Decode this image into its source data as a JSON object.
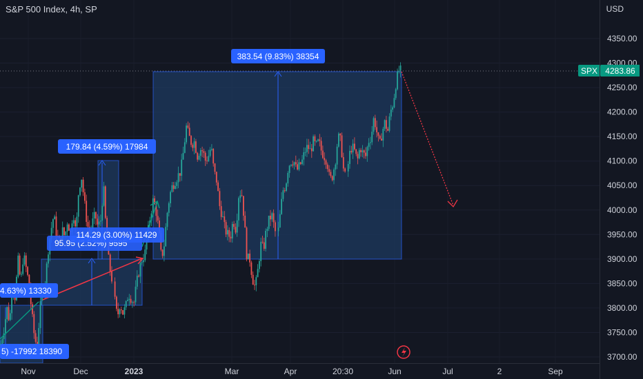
{
  "header": {
    "title": "S&P 500 Index, 4h, SP",
    "currency": "USD"
  },
  "price_tag": {
    "symbol": "SPX",
    "value": "4283.86",
    "price": 4283.86
  },
  "colors": {
    "bg": "#131722",
    "up": "#26a69a",
    "down": "#ef5350",
    "text": "#d1d4dc",
    "measure": "#2962ff",
    "measureFill": "#1e3a5f",
    "arrow": "#f23645",
    "tag": "#089981"
  },
  "chart_data": {
    "type": "candlestick",
    "title": "S&P 500 Index, 4h, SP",
    "ylim": [
      3690,
      4380
    ],
    "yticks": [
      4350,
      4300,
      4250,
      4200,
      4150,
      4100,
      4050,
      4000,
      3950,
      3900,
      3850,
      3800,
      3750,
      3700
    ],
    "ytick_labels": [
      "4350.00",
      "4300.00",
      "4250.00",
      "4200.00",
      "4150.00",
      "4100.00",
      "4050.00",
      "4000.00",
      "3950.00",
      "3900.00",
      "3850.00",
      "3800.00",
      "3750.00",
      "3700.00"
    ],
    "xticks": [
      {
        "label": "Nov",
        "bold": false
      },
      {
        "label": "Dec",
        "bold": false
      },
      {
        "label": "2023",
        "bold": true
      },
      {
        "label": "Mar",
        "bold": false
      },
      {
        "label": "Apr",
        "bold": false
      },
      {
        "label": "20:30",
        "bold": false
      },
      {
        "label": "Jun",
        "bold": false
      },
      {
        "label": "Jul",
        "bold": false
      },
      {
        "label": "2",
        "bold": false
      },
      {
        "label": "Sep",
        "bold": false
      }
    ],
    "last_price": 4283.86,
    "price_path": [
      [
        0,
        3720
      ],
      [
        6,
        3760
      ],
      [
        10,
        3800
      ],
      [
        14,
        3770
      ],
      [
        18,
        3860
      ],
      [
        22,
        3820
      ],
      [
        26,
        3900
      ],
      [
        30,
        3850
      ],
      [
        34,
        3910
      ],
      [
        38,
        3880
      ],
      [
        42,
        3850
      ],
      [
        46,
        3790
      ],
      [
        50,
        3740
      ],
      [
        54,
        3720
      ],
      [
        58,
        3800
      ],
      [
        62,
        3830
      ],
      [
        66,
        3860
      ],
      [
        70,
        3920
      ],
      [
        74,
        3960
      ],
      [
        78,
        3990
      ],
      [
        82,
        3950
      ],
      [
        86,
        3935
      ],
      [
        90,
        3960
      ],
      [
        94,
        3945
      ],
      [
        98,
        3980
      ],
      [
        102,
        3950
      ],
      [
        106,
        4000
      ],
      [
        110,
        3950
      ],
      [
        114,
        4040
      ],
      [
        118,
        4070
      ],
      [
        122,
        4020
      ],
      [
        126,
        3975
      ],
      [
        130,
        3950
      ],
      [
        134,
        3975
      ],
      [
        138,
        3990
      ],
      [
        142,
        3965
      ],
      [
        146,
        3980
      ],
      [
        150,
        4050
      ],
      [
        154,
        3950
      ],
      [
        158,
        3890
      ],
      [
        162,
        3860
      ],
      [
        166,
        3820
      ],
      [
        170,
        3780
      ],
      [
        174,
        3810
      ],
      [
        178,
        3790
      ],
      [
        182,
        3800
      ],
      [
        186,
        3830
      ],
      [
        190,
        3820
      ],
      [
        194,
        3810
      ],
      [
        198,
        3850
      ],
      [
        202,
        3880
      ],
      [
        206,
        3900
      ],
      [
        210,
        3910
      ],
      [
        214,
        3950
      ],
      [
        218,
        3990
      ],
      [
        222,
        4020
      ],
      [
        226,
        4000
      ],
      [
        230,
        3960
      ],
      [
        234,
        3900
      ],
      [
        238,
        3930
      ],
      [
        242,
        3990
      ],
      [
        246,
        4030
      ],
      [
        250,
        4050
      ],
      [
        254,
        4060
      ],
      [
        258,
        4070
      ],
      [
        262,
        4080
      ],
      [
        266,
        4120
      ],
      [
        270,
        4170
      ],
      [
        274,
        4150
      ],
      [
        278,
        4135
      ],
      [
        282,
        4140
      ],
      [
        286,
        4110
      ],
      [
        290,
        4125
      ],
      [
        294,
        4120
      ],
      [
        298,
        4100
      ],
      [
        302,
        4110
      ],
      [
        306,
        4130
      ],
      [
        310,
        4080
      ],
      [
        314,
        4060
      ],
      [
        318,
        4010
      ],
      [
        322,
        3990
      ],
      [
        326,
        3960
      ],
      [
        330,
        3950
      ],
      [
        334,
        3945
      ],
      [
        338,
        3980
      ],
      [
        342,
        3960
      ],
      [
        346,
        4030
      ],
      [
        350,
        4040
      ],
      [
        354,
        3980
      ],
      [
        358,
        3900
      ],
      [
        362,
        3900
      ],
      [
        366,
        3860
      ],
      [
        370,
        3840
      ],
      [
        374,
        3880
      ],
      [
        378,
        3930
      ],
      [
        382,
        3920
      ],
      [
        386,
        3960
      ],
      [
        390,
        3980
      ],
      [
        394,
        3990
      ],
      [
        398,
        3960
      ],
      [
        402,
        3940
      ],
      [
        406,
        3990
      ],
      [
        410,
        4040
      ],
      [
        414,
        4050
      ],
      [
        418,
        4090
      ],
      [
        422,
        4100
      ],
      [
        426,
        4100
      ],
      [
        430,
        4080
      ],
      [
        434,
        4090
      ],
      [
        438,
        4100
      ],
      [
        442,
        4120
      ],
      [
        446,
        4130
      ],
      [
        450,
        4120
      ],
      [
        454,
        4140
      ],
      [
        458,
        4130
      ],
      [
        462,
        4140
      ],
      [
        466,
        4120
      ],
      [
        470,
        4110
      ],
      [
        474,
        4100
      ],
      [
        478,
        4060
      ],
      [
        482,
        4070
      ],
      [
        486,
        4100
      ],
      [
        490,
        4150
      ],
      [
        494,
        4140
      ],
      [
        498,
        4080
      ],
      [
        502,
        4060
      ],
      [
        506,
        4110
      ],
      [
        510,
        4130
      ],
      [
        514,
        4120
      ],
      [
        518,
        4100
      ],
      [
        522,
        4130
      ],
      [
        526,
        4115
      ],
      [
        530,
        4110
      ],
      [
        534,
        4140
      ],
      [
        538,
        4150
      ],
      [
        542,
        4190
      ],
      [
        546,
        4160
      ],
      [
        550,
        4130
      ],
      [
        554,
        4160
      ],
      [
        558,
        4180
      ],
      [
        562,
        4160
      ],
      [
        566,
        4200
      ],
      [
        570,
        4220
      ],
      [
        574,
        4260
      ],
      [
        578,
        4285
      ],
      [
        582,
        4283.86
      ]
    ]
  },
  "annotations": {
    "measures": [
      {
        "label": "383.54 (9.83%) 38354"
      },
      {
        "label": "179.84 (4.59%) 17984"
      },
      {
        "label": "114.29 (3.00%) 11429"
      },
      {
        "label": "95.95 (2.52%) 9595"
      },
      {
        "label": "4.63%) 13330"
      },
      {
        "label": "-17992"
      },
      {
        "label": "18390"
      }
    ],
    "alert_icon": "lightning-icon"
  }
}
